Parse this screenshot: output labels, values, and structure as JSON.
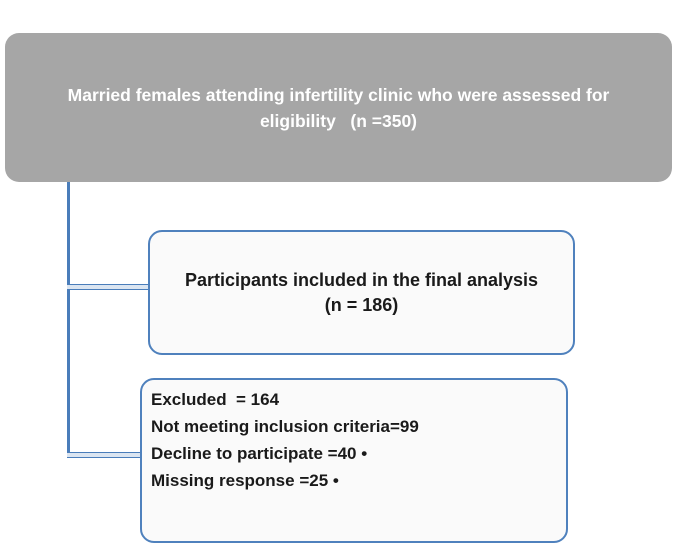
{
  "diagram": {
    "type": "participant-flow-chart",
    "eligibility_box": {
      "text": "Married females attending infertility clinic who were assessed for\neligibility   (n =350)"
    },
    "included_box": {
      "line1": "Participants included in the final analysis",
      "line2": "(n = 186)"
    },
    "excluded_box": {
      "lines": [
        "Excluded  = 164",
        "Not meeting inclusion criteria=99",
        "Decline to participate =40 •",
        "Missing response =25 •"
      ]
    },
    "colors": {
      "gray_box_fill": "#a6a6a6",
      "blue_border": "#4f81bd",
      "connector_blue": "#4a7dba",
      "connector_core": "#dbe5f1",
      "box_fill": "#fafafa",
      "text_light": "#ffffff",
      "text_dark": "#1a1a1a"
    }
  }
}
